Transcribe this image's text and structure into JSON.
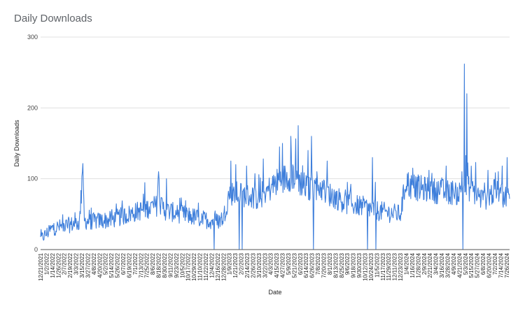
{
  "chart_data": {
    "type": "line",
    "title": "Daily Downloads",
    "xlabel": "Date",
    "ylabel": "Daily Downloads",
    "ylim": [
      0,
      300
    ],
    "yticks": [
      "0",
      "100",
      "200",
      "300"
    ],
    "grid": true,
    "legend": "none",
    "series_color": "#3f7fdb",
    "date_range": [
      "2021-12-21",
      "2024-08-01"
    ],
    "x_tick_labels": [
      "12/21/2021",
      "1/2/2022",
      "1/14/2022",
      "1/26/2022",
      "2/7/2022",
      "2/19/2022",
      "3/3/2022",
      "3/15/2022",
      "3/27/2022",
      "4/8/2022",
      "4/20/2022",
      "5/2/2022",
      "5/14/2022",
      "5/26/2022",
      "6/7/2022",
      "6/19/2022",
      "7/1/2022",
      "7/13/2022",
      "7/25/2022",
      "8/6/2022",
      "8/18/2022",
      "8/30/2022",
      "9/11/2022",
      "9/23/2022",
      "10/5/2022",
      "10/17/2022",
      "10/29/2022",
      "11/10/2022",
      "11/22/2022",
      "12/4/2022",
      "12/16/2022",
      "12/28/2022",
      "1/9/2023",
      "1/21/2023",
      "2/2/2023",
      "2/14/2023",
      "2/26/2023",
      "3/10/2023",
      "3/22/2023",
      "4/3/2023",
      "4/15/2023",
      "4/27/2023",
      "5/9/2023",
      "5/21/2023",
      "6/2/2023",
      "6/14/2023",
      "6/26/2023",
      "7/8/2023",
      "7/20/2023",
      "8/1/2023",
      "8/13/2023",
      "8/25/2023",
      "9/6/2023",
      "9/18/2023",
      "9/30/2023",
      "10/12/2023",
      "10/24/2023",
      "11/5/2023",
      "11/17/2023",
      "11/29/2023",
      "12/11/2023",
      "12/23/2023",
      "1/4/2024",
      "1/16/2024",
      "1/28/2024",
      "2/9/2024",
      "2/21/2024",
      "3/4/2024",
      "3/16/2024",
      "3/28/2024",
      "4/9/2024",
      "4/21/2024",
      "5/3/2024",
      "5/15/2024",
      "5/27/2024",
      "6/8/2024",
      "6/20/2024",
      "7/2/2024",
      "7/14/2024",
      "7/26/2024"
    ],
    "series": [
      {
        "anchors_x": [
          "2021-12-21",
          "2022-01-14",
          "2022-02-19",
          "2022-03-10",
          "2022-03-14",
          "2022-03-16",
          "2022-03-20",
          "2022-04-08",
          "2022-05-14",
          "2022-06-19",
          "2022-07-25",
          "2022-08-14",
          "2022-08-18",
          "2022-08-20",
          "2022-09-01",
          "2022-10-17",
          "2022-11-22",
          "2022-12-16",
          "2022-12-28",
          "2023-01-09",
          "2023-02-02",
          "2023-03-10",
          "2023-04-15",
          "2023-04-27",
          "2023-05-21",
          "2023-06-02",
          "2023-06-20",
          "2023-07-08",
          "2023-08-01",
          "2023-09-06",
          "2023-10-12",
          "2023-11-05",
          "2023-11-29",
          "2023-12-23",
          "2024-01-04",
          "2024-01-10",
          "2024-02-09",
          "2024-03-16",
          "2024-04-21",
          "2024-05-03",
          "2024-05-15",
          "2024-06-08",
          "2024-07-02",
          "2024-08-01"
        ],
        "anchors_y": [
          15,
          30,
          35,
          38,
          80,
          122,
          40,
          40,
          42,
          50,
          58,
          62,
          108,
          65,
          55,
          48,
          42,
          40,
          45,
          80,
          78,
          72,
          95,
          100,
          105,
          95,
          85,
          90,
          78,
          65,
          60,
          55,
          52,
          50,
          100,
          90,
          85,
          82,
          80,
          90,
          85,
          70,
          82,
          72
        ],
        "spikes_x": [
          "2022-08-18",
          "2022-09-03",
          "2023-01-12",
          "2023-01-22",
          "2023-02-13",
          "2023-03-19",
          "2023-04-21",
          "2023-04-27",
          "2023-05-14",
          "2023-05-29",
          "2023-06-18",
          "2023-06-25",
          "2023-07-27",
          "2023-09-06",
          "2023-10-27",
          "2023-11-02",
          "2024-01-17",
          "2024-02-19",
          "2024-03-25",
          "2024-04-26",
          "2024-05-01",
          "2024-05-06",
          "2024-05-24",
          "2024-06-18",
          "2024-07-09",
          "2024-07-17",
          "2024-07-27"
        ],
        "spikes_y": [
          110,
          100,
          125,
          120,
          118,
          128,
          145,
          150,
          160,
          175,
          140,
          160,
          125,
          95,
          130,
          95,
          115,
          112,
          118,
          110,
          262,
          220,
          123,
          112,
          110,
          118,
          130
        ],
        "dips_x": [
          "2022-12-09",
          "2023-01-29",
          "2023-02-04",
          "2023-06-29",
          "2023-10-17",
          "2023-11-03",
          "2024-04-28"
        ],
        "dips_y": [
          0,
          0,
          0,
          0,
          0,
          0,
          0
        ],
        "noise_amplitude": 16
      }
    ]
  }
}
